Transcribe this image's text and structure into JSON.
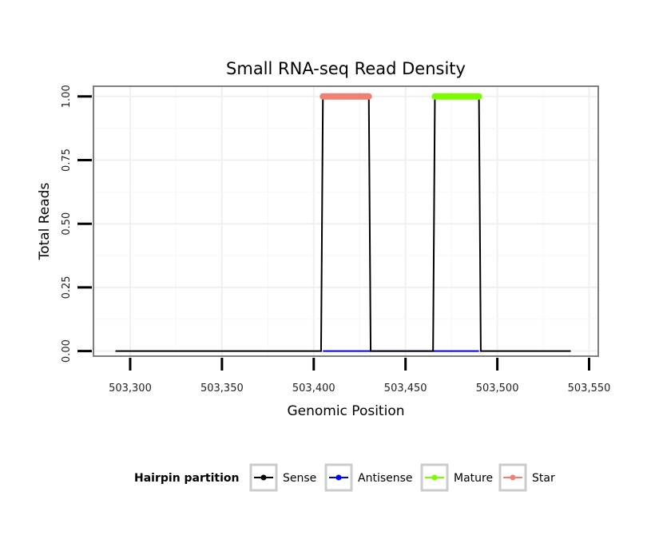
{
  "chart_data": {
    "type": "line",
    "title": "Small RNA-seq Read Density",
    "xlabel": "Genomic Position",
    "ylabel": "Total Reads",
    "xlim": [
      503280,
      503555
    ],
    "ylim": [
      -0.02,
      1.04
    ],
    "x_ticks": [
      {
        "value": 503300,
        "label": "503,300"
      },
      {
        "value": 503350,
        "label": "503,350"
      },
      {
        "value": 503400,
        "label": "503,400"
      },
      {
        "value": 503450,
        "label": "503,450"
      },
      {
        "value": 503500,
        "label": "503,500"
      },
      {
        "value": 503550,
        "label": "503,550"
      }
    ],
    "y_ticks": [
      {
        "value": 0.0,
        "label": "0.00"
      },
      {
        "value": 0.25,
        "label": "0.25"
      },
      {
        "value": 0.5,
        "label": "0.50"
      },
      {
        "value": 0.75,
        "label": "0.75"
      },
      {
        "value": 1.0,
        "label": "1.00"
      }
    ],
    "series": [
      {
        "name": "Sense",
        "color": "#000000",
        "x": [
          503292,
          503404,
          503405,
          503430,
          503431,
          503465,
          503466,
          503490,
          503491,
          503540
        ],
        "y": [
          0,
          0,
          1,
          1,
          0,
          0,
          1,
          1,
          0,
          0
        ]
      },
      {
        "name": "Antisense",
        "color": "#0000ff",
        "x": [
          503405,
          503430,
          503431,
          503465,
          503466,
          503490
        ],
        "y": [
          0,
          0,
          0,
          0,
          0,
          0
        ]
      },
      {
        "name": "Mature",
        "color": "#7cfc00",
        "x": [
          503466,
          503490
        ],
        "y": [
          1,
          1
        ]
      },
      {
        "name": "Star",
        "color": "#f08073",
        "x": [
          503405,
          503430
        ],
        "y": [
          1,
          1
        ]
      }
    ],
    "legend": {
      "title": "Hairpin partition",
      "position": "bottom",
      "entries": [
        "Sense",
        "Antisense",
        "Mature",
        "Star"
      ]
    },
    "grid": true
  }
}
